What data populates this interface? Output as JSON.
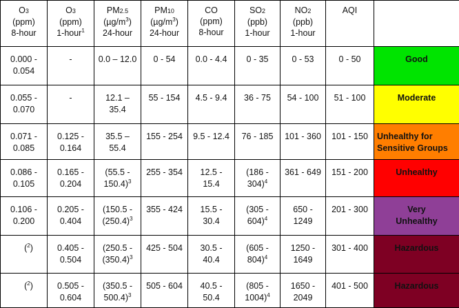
{
  "header": {
    "o3_8hr": {
      "pollutant": "O",
      "subscript": "3",
      "unit": "(ppm)",
      "period": "8-hour"
    },
    "o3_1hr": {
      "pollutant": "O",
      "subscript": "3",
      "unit": "(ppm)",
      "period": "1-hour",
      "note": "1"
    },
    "pm25": {
      "pollutant": "PM",
      "subscript": "2.5",
      "unit": "(µg/m",
      "unit_sup": "3",
      "unit_close": ")",
      "period": "24-hour"
    },
    "pm10": {
      "pollutant": "PM",
      "subscript": "10",
      "unit": "(µg/m",
      "unit_sup": "3",
      "unit_close": ")",
      "period": "24-hour"
    },
    "co": {
      "pollutant": "CO",
      "unit": "(ppm)",
      "period": "8-hour"
    },
    "so2": {
      "pollutant": "SO",
      "subscript": "2",
      "unit": "(ppb)",
      "period": "1-hour"
    },
    "no2": {
      "pollutant": "NO",
      "subscript": "2",
      "unit": "(ppb)",
      "period": "1-hour"
    },
    "aqi": "AQI"
  },
  "rows": [
    {
      "o3_8hr": [
        "0.000 -",
        "0.054"
      ],
      "o3_1hr": [
        "-"
      ],
      "pm25": [
        "0.0 – 12.0"
      ],
      "pm10": [
        "0 - 54"
      ],
      "co": [
        "0.0 - 4.4"
      ],
      "so2": [
        "0 - 35"
      ],
      "no2": [
        "0 - 53"
      ],
      "aqi": "0 - 50",
      "category": [
        "Good"
      ],
      "color": "#00e400",
      "text_color": "#111111"
    },
    {
      "o3_8hr": [
        "0.055 -",
        "0.070"
      ],
      "o3_1hr": [
        "-"
      ],
      "pm25": [
        "12.1 –",
        "35.4"
      ],
      "pm10": [
        "55 - 154"
      ],
      "co": [
        "4.5 - 9.4"
      ],
      "so2": [
        "36 - 75"
      ],
      "no2": [
        "54 - 100"
      ],
      "aqi": "51 - 100",
      "category": [
        "Moderate"
      ],
      "color": "#ffff00",
      "text_color": "#111111"
    },
    {
      "o3_8hr": [
        "0.071 -",
        "0.085"
      ],
      "o3_1hr": [
        "0.125 -",
        "0.164"
      ],
      "pm25": [
        "35.5 –",
        "55.4"
      ],
      "pm10": [
        "155 - 254"
      ],
      "co": [
        "9.5 - 12.4"
      ],
      "so2": [
        "76 - 185"
      ],
      "no2": [
        "101 - 360"
      ],
      "aqi": "101 - 150",
      "category": [
        "Unhealthy for",
        "Sensitive Groups"
      ],
      "color": "#ff7e00",
      "text_color": "#111111"
    },
    {
      "o3_8hr": [
        "0.086 -",
        "0.105"
      ],
      "o3_1hr": [
        "0.165 -",
        "0.204"
      ],
      "pm25": [
        "(55.5 -",
        "150.4)"
      ],
      "pm25_note": "3",
      "pm10": [
        "255 - 354"
      ],
      "co": [
        "12.5 -",
        "15.4"
      ],
      "so2": [
        "(186 -",
        "304)"
      ],
      "so2_note": "4",
      "no2": [
        "361 - 649"
      ],
      "aqi": "151 - 200",
      "category": [
        "Unhealthy"
      ],
      "color": "#ff0000",
      "text_color": "#111111"
    },
    {
      "o3_8hr": [
        "0.106 -",
        "0.200"
      ],
      "o3_1hr": [
        "0.205 -",
        "0.404"
      ],
      "pm25": [
        "(150.5 -",
        "(250.4)"
      ],
      "pm25_note": "3",
      "pm10": [
        "355 - 424"
      ],
      "co": [
        "15.5 -",
        "30.4"
      ],
      "so2": [
        "(305 -",
        "604)"
      ],
      "so2_note": "4",
      "no2": [
        "650 -",
        "1249"
      ],
      "aqi": "201 - 300",
      "category": [
        "Very",
        "Unhealthy"
      ],
      "color": "#8f3f97",
      "text_color": "#111111"
    },
    {
      "o3_8hr": [
        "(",
        ")"
      ],
      "o3_8hr_note": "2",
      "o3_1hr": [
        "0.405 -",
        "0.504"
      ],
      "pm25": [
        "(250.5 -",
        "(350.4)"
      ],
      "pm25_note": "3",
      "pm10": [
        "425 - 504"
      ],
      "co": [
        "30.5 -",
        "40.4"
      ],
      "so2": [
        "(605 -",
        "804)"
      ],
      "so2_note": "4",
      "no2": [
        "1250 -",
        "1649"
      ],
      "aqi": "301 - 400",
      "category": [
        "Hazardous"
      ],
      "color": "#7e0023",
      "text_color": "#111111"
    },
    {
      "o3_8hr": [
        "(",
        ")"
      ],
      "o3_8hr_note": "2",
      "o3_1hr": [
        "0.505 -",
        "0.604"
      ],
      "pm25": [
        "(350.5 -",
        "500.4)"
      ],
      "pm25_note": "3",
      "pm10": [
        "505 - 604"
      ],
      "co": [
        "40.5 -",
        "50.4"
      ],
      "so2": [
        "(805 -",
        "1004)"
      ],
      "so2_note": "4",
      "no2": [
        "1650 -",
        "2049"
      ],
      "aqi": "401 - 500",
      "category": [
        "Hazardous"
      ],
      "color": "#7e0023",
      "text_color": "#111111"
    }
  ]
}
